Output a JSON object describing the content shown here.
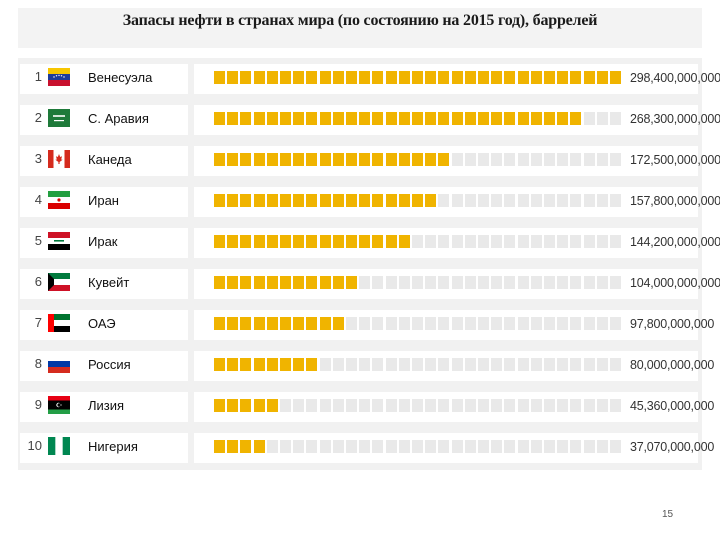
{
  "title": "Запасы нефти в странах мира (по состоянию на 2015 год), баррелей",
  "page_number": "15",
  "colors": {
    "bar_fill": "#f0b400",
    "bar_empty": "#e9e9e9",
    "panel_bg": "#f1f1f1"
  },
  "chart_data": {
    "type": "bar",
    "orientation": "horizontal",
    "title": "Запасы нефти в странах мира (по состоянию на 2015 год), баррелей",
    "unit": "баррелей",
    "xlim": [
      0,
      298400000000
    ],
    "grid": false,
    "legend": "none",
    "categories": [
      "Венесуэла",
      "С. Аравия",
      "Канеда",
      "Иран",
      "Ирак",
      "Кувейт",
      "ОАЭ",
      "Россия",
      "Лизия",
      "Нигерия"
    ],
    "values": [
      298400000000,
      268300000000,
      172500000000,
      157800000000,
      144200000000,
      104000000000,
      97800000000,
      80000000000,
      45360000000,
      37070000000
    ],
    "rows": [
      {
        "rank": "1",
        "country": "Венесуэла",
        "value_label": "298,400,000,000",
        "flag": "venezuela-flag"
      },
      {
        "rank": "2",
        "country": "С. Аравия",
        "value_label": "268,300,000,000",
        "flag": "saudi-arabia-flag"
      },
      {
        "rank": "3",
        "country": "Канеда",
        "value_label": "172,500,000,000",
        "flag": "canada-flag"
      },
      {
        "rank": "4",
        "country": "Иран",
        "value_label": "157,800,000,000",
        "flag": "iran-flag"
      },
      {
        "rank": "5",
        "country": "Ирак",
        "value_label": "144,200,000,000",
        "flag": "iraq-flag"
      },
      {
        "rank": "6",
        "country": "Кувейт",
        "value_label": "104,000,000,000",
        "flag": "kuwait-flag"
      },
      {
        "rank": "7",
        "country": "ОАЭ",
        "value_label": "97,800,000,000",
        "flag": "uae-flag"
      },
      {
        "rank": "8",
        "country": "Россия",
        "value_label": "80,000,000,000",
        "flag": "russia-flag"
      },
      {
        "rank": "9",
        "country": "Лизия",
        "value_label": "45,360,000,000",
        "flag": "libya-flag"
      },
      {
        "rank": "10",
        "country": "Нигерия",
        "value_label": "37,070,000,000",
        "flag": "nigeria-flag"
      }
    ]
  }
}
